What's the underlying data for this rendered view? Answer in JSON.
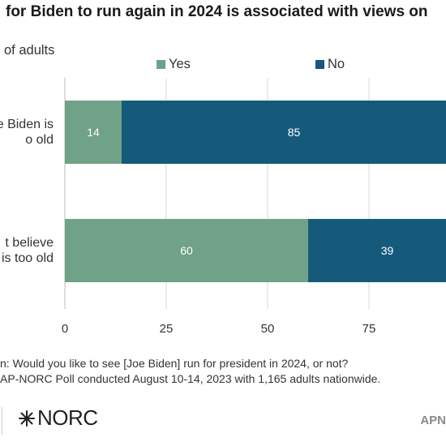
{
  "title": "for Biden to run again in 2024 is associated with views on",
  "subtitle": "of adults",
  "legend": [
    {
      "label": "Yes",
      "color": "#6fa287"
    },
    {
      "label": "No",
      "color": "#155a7a"
    }
  ],
  "categories": [
    {
      "line1": "e Biden is",
      "line2": "o old"
    },
    {
      "line1": "t believe",
      "line2": "is too old"
    }
  ],
  "notes": {
    "question": "n: Would you like to see [Joe Biden] run for president in 2024, or not?",
    "source": "AP-NORC Poll conducted August 10-14, 2023 with 1,165 adults nationwide."
  },
  "logos": {
    "norc": "NORC",
    "ap": "APN"
  },
  "chart_data": {
    "type": "bar",
    "orientation": "horizontal",
    "stacked": true,
    "categories": [
      "e Biden is o old",
      "t believe is too old"
    ],
    "series": [
      {
        "name": "Yes",
        "values": [
          14,
          60
        ],
        "color": "#6fa287"
      },
      {
        "name": "No",
        "values": [
          85,
          39
        ],
        "color": "#155a7a"
      }
    ],
    "x_ticks": [
      0,
      25,
      50,
      75
    ],
    "xlim": [
      0,
      100
    ],
    "grid": true,
    "legend_position": "top"
  }
}
